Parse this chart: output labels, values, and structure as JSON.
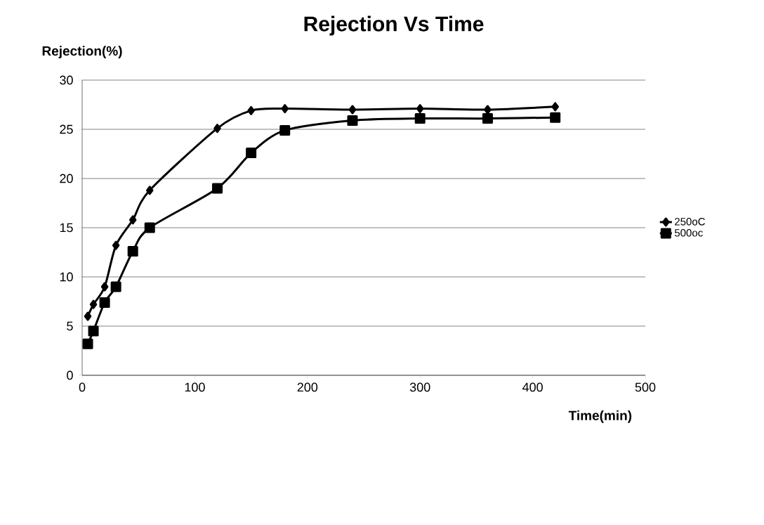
{
  "chart_data": {
    "type": "line",
    "title": "Rejection Vs Time",
    "xlabel": "Time(min)",
    "ylabel": "Rejection(%)",
    "x": [
      5,
      10,
      20,
      30,
      45,
      60,
      120,
      150,
      180,
      240,
      300,
      360,
      420
    ],
    "series": [
      {
        "name": "250oC",
        "color": "#000000",
        "marker": "diamond",
        "values": [
          6.0,
          7.2,
          9.0,
          13.2,
          15.8,
          18.8,
          25.1,
          26.9,
          27.1,
          27.0,
          27.1,
          27.0,
          27.3
        ]
      },
      {
        "name": "500oc",
        "color": "#000000",
        "marker": "square",
        "values": [
          3.2,
          4.5,
          7.4,
          9.0,
          12.6,
          15.0,
          19.0,
          22.6,
          24.9,
          25.9,
          26.1,
          26.1,
          26.2
        ]
      }
    ],
    "xlim": [
      0,
      500
    ],
    "xticks": [
      0,
      100,
      200,
      300,
      400,
      500
    ],
    "ylim": [
      0,
      30
    ],
    "yticks": [
      0,
      5,
      10,
      15,
      20,
      25,
      30
    ],
    "grid": "y",
    "legend": "right",
    "line_style": "solid"
  }
}
